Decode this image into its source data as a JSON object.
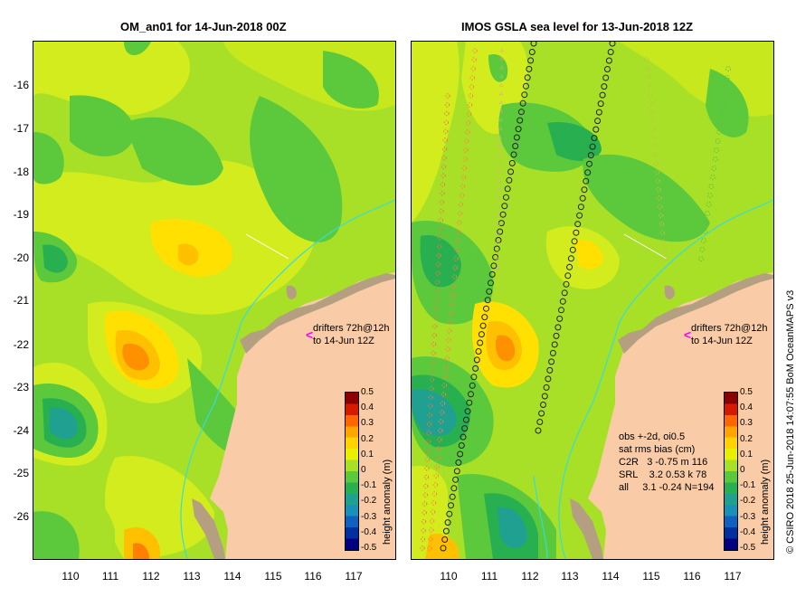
{
  "left_panel": {
    "title": "OM_an01 for 14-Jun-2018 00Z",
    "drifters_text": [
      "drifters 72h@12h",
      "to 14-Jun 12Z"
    ]
  },
  "right_panel": {
    "title": "IMOS GSLA sea level  for 13-Jun-2018 12Z",
    "drifters_text": [
      "drifters 72h@12h",
      "to 14-Jun 12Z"
    ],
    "stats": {
      "line1": "obs +-2d, oi0.5",
      "line2": "sat rms bias (cm)",
      "rows": [
        {
          "sat": "C2R",
          "vals": "3 -0.75 m 116"
        },
        {
          "sat": "SRL",
          "vals": "3.2 0.53 k 78"
        },
        {
          "sat": "all",
          "vals": "3.1 -0.24 N=194"
        }
      ]
    }
  },
  "axes": {
    "lat_ticks": [
      "-16",
      "-17",
      "-18",
      "-19",
      "-20",
      "-21",
      "-22",
      "-23",
      "-24",
      "-25",
      "-26"
    ],
    "lon_ticks": [
      "110",
      "111",
      "112",
      "113",
      "114",
      "115",
      "116",
      "117"
    ],
    "lon_range": [
      109.1,
      118.0
    ],
    "lat_range": [
      -27.0,
      -15.0
    ]
  },
  "colorbar": {
    "label": "height anomaly (m)",
    "ticks": [
      "0.5",
      "0.4",
      "0.3",
      "0.2",
      "0.1",
      "0",
      "-0.1",
      "-0.2",
      "-0.3",
      "-0.4",
      "-0.5"
    ],
    "colors": [
      "#8b0000",
      "#d61a00",
      "#ff6600",
      "#ffa500",
      "#ffd200",
      "#e8f000",
      "#a8e028",
      "#5cc83c",
      "#28b050",
      "#20a090",
      "#1890b8",
      "#1060c0",
      "#0030a0",
      "#000080"
    ],
    "range": [
      -0.5,
      0.5
    ]
  },
  "credit": "© CSIRO 2018   25-Jun-2018 14:07:55 BoM OceanMAPS v3",
  "colors": {
    "land": "#f9cba6",
    "islands": "#b4a080",
    "base_anomaly": "#a8e028",
    "coast_track": "#33dddd",
    "drifter": "#ff00ff"
  }
}
